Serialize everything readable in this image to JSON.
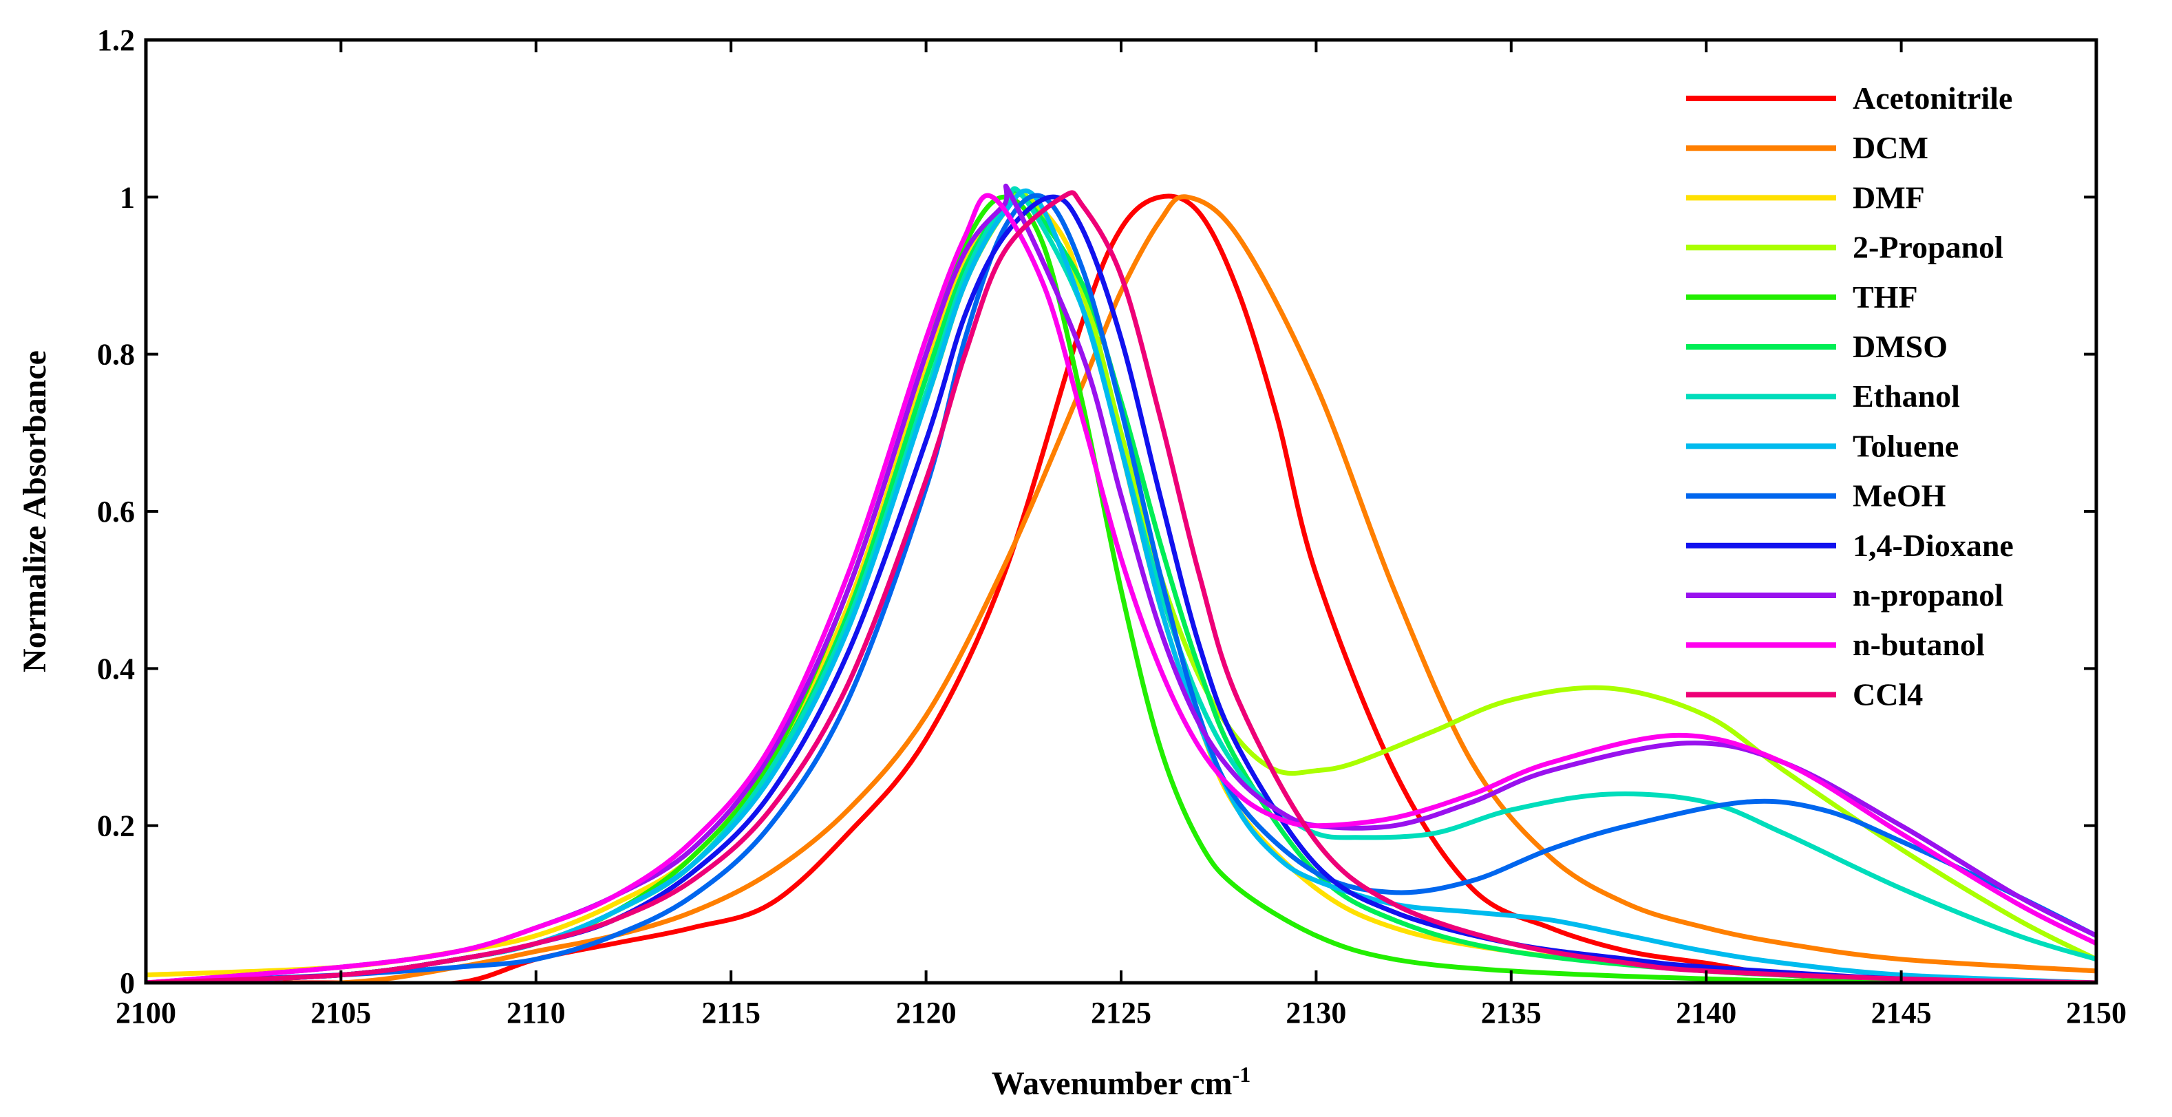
{
  "chart_data": {
    "type": "line",
    "xlabel": "Wavenumber cm",
    "xlabel_sup": "-1",
    "ylabel": "Normalize Absorbance",
    "xlim": [
      2100,
      2150
    ],
    "ylim": [
      0,
      1.2
    ],
    "xticks": [
      2100,
      2105,
      2110,
      2115,
      2120,
      2125,
      2130,
      2135,
      2140,
      2145,
      2150
    ],
    "yticks": [
      0,
      0.2,
      0.4,
      0.6,
      0.8,
      1,
      1.2
    ],
    "ytick_labels": [
      "0",
      "0.2",
      "0.4",
      "0.6",
      "0.8",
      "1",
      "1.2"
    ],
    "legend_position": "top-right",
    "series": [
      {
        "name": "Acetonitrile",
        "color": "#ff0000",
        "x": [
          2100,
          2105,
          2108,
          2110,
          2112,
          2114,
          2116,
          2118,
          2120,
          2122,
          2124,
          2125,
          2126,
          2127,
          2128,
          2129,
          2130,
          2132,
          2134,
          2136,
          2138,
          2140,
          2142,
          2145,
          2150
        ],
        "y": [
          0,
          0,
          0,
          0.03,
          0.05,
          0.07,
          0.1,
          0.19,
          0.31,
          0.52,
          0.84,
          0.96,
          1.0,
          0.98,
          0.88,
          0.72,
          0.52,
          0.27,
          0.12,
          0.07,
          0.04,
          0.025,
          0.01,
          0.005,
          0
        ]
      },
      {
        "name": "DCM",
        "color": "#ff7f00",
        "x": [
          2100,
          2105,
          2108,
          2110,
          2112,
          2114,
          2116,
          2118,
          2120,
          2122,
          2124,
          2125,
          2126,
          2126.7,
          2128,
          2130,
          2132,
          2134,
          2136,
          2138,
          2140,
          2142,
          2145,
          2150
        ],
        "y": [
          0,
          0,
          0.02,
          0.04,
          0.06,
          0.09,
          0.14,
          0.22,
          0.34,
          0.53,
          0.76,
          0.88,
          0.97,
          1.0,
          0.95,
          0.76,
          0.5,
          0.28,
          0.16,
          0.1,
          0.07,
          0.05,
          0.03,
          0.015
        ]
      },
      {
        "name": "DMF",
        "color": "#ffe000",
        "x": [
          2100,
          2105,
          2108,
          2110,
          2112,
          2114,
          2116,
          2118,
          2120,
          2121,
          2122,
          2122.6,
          2123.5,
          2124,
          2125,
          2126,
          2127,
          2128,
          2130,
          2132,
          2135,
          2140,
          2145,
          2150
        ],
        "y": [
          0.01,
          0.02,
          0.04,
          0.06,
          0.1,
          0.16,
          0.28,
          0.48,
          0.78,
          0.92,
          0.99,
          1.0,
          0.95,
          0.88,
          0.68,
          0.48,
          0.33,
          0.22,
          0.12,
          0.07,
          0.04,
          0.015,
          0.005,
          0
        ]
      },
      {
        "name": "2-Propanol",
        "color": "#aaff00",
        "x": [
          2100,
          2105,
          2108,
          2110,
          2112,
          2114,
          2116,
          2118,
          2120,
          2121,
          2122,
          2122.6,
          2124,
          2125,
          2126,
          2127,
          2128,
          2129,
          2130,
          2131,
          2133,
          2135,
          2137.5,
          2140,
          2142,
          2145,
          2148,
          2150
        ],
        "y": [
          0,
          0.01,
          0.03,
          0.05,
          0.09,
          0.15,
          0.27,
          0.46,
          0.74,
          0.89,
          0.98,
          1.0,
          0.88,
          0.7,
          0.52,
          0.39,
          0.31,
          0.27,
          0.27,
          0.28,
          0.32,
          0.36,
          0.375,
          0.34,
          0.27,
          0.17,
          0.08,
          0.03
        ]
      },
      {
        "name": "THF",
        "color": "#22ee00",
        "x": [
          2100,
          2105,
          2108,
          2110,
          2112,
          2114,
          2116,
          2118,
          2120,
          2121,
          2122,
          2123,
          2124,
          2125,
          2126,
          2127,
          2128,
          2130,
          2132,
          2135,
          2140,
          2145,
          2150
        ],
        "y": [
          0,
          0.01,
          0.03,
          0.05,
          0.09,
          0.16,
          0.28,
          0.5,
          0.8,
          0.94,
          1.0,
          0.94,
          0.74,
          0.5,
          0.3,
          0.18,
          0.12,
          0.06,
          0.03,
          0.015,
          0.005,
          0,
          0
        ]
      },
      {
        "name": "DMSO",
        "color": "#00ee55",
        "x": [
          2100,
          2105,
          2108,
          2110,
          2112,
          2114,
          2116,
          2118,
          2120,
          2121,
          2122,
          2122.5,
          2124,
          2125,
          2126,
          2127,
          2128,
          2130,
          2132,
          2135,
          2140,
          2145,
          2150
        ],
        "y": [
          0,
          0.01,
          0.03,
          0.05,
          0.09,
          0.15,
          0.27,
          0.47,
          0.77,
          0.91,
          0.99,
          1.0,
          0.89,
          0.74,
          0.56,
          0.4,
          0.28,
          0.14,
          0.08,
          0.04,
          0.015,
          0.005,
          0
        ]
      },
      {
        "name": "Ethanol",
        "color": "#00ddbb",
        "x": [
          2100,
          2105,
          2108,
          2110,
          2112,
          2114,
          2116,
          2118,
          2120,
          2121,
          2122,
          2122.5,
          2124,
          2125,
          2126,
          2127,
          2128,
          2129,
          2130,
          2131,
          2133,
          2135,
          2137.5,
          2140,
          2142,
          2145,
          2148,
          2150
        ],
        "y": [
          0,
          0.01,
          0.03,
          0.05,
          0.09,
          0.15,
          0.27,
          0.46,
          0.75,
          0.9,
          0.99,
          1.0,
          0.86,
          0.68,
          0.5,
          0.36,
          0.27,
          0.22,
          0.19,
          0.185,
          0.19,
          0.22,
          0.24,
          0.23,
          0.19,
          0.12,
          0.06,
          0.03
        ]
      },
      {
        "name": "Toluene",
        "color": "#00bbee",
        "x": [
          2100,
          2105,
          2108,
          2110,
          2112,
          2114,
          2116,
          2118,
          2120,
          2121,
          2122,
          2122.8,
          2124,
          2125,
          2126,
          2127,
          2128,
          2129,
          2130,
          2132,
          2134,
          2136,
          2138,
          2140,
          2142,
          2145,
          2150
        ],
        "y": [
          0,
          0.01,
          0.03,
          0.05,
          0.09,
          0.15,
          0.26,
          0.45,
          0.74,
          0.89,
          0.98,
          1.0,
          0.86,
          0.68,
          0.48,
          0.33,
          0.22,
          0.16,
          0.13,
          0.1,
          0.09,
          0.08,
          0.06,
          0.04,
          0.025,
          0.01,
          0
        ]
      },
      {
        "name": "MeOH",
        "color": "#0066ee",
        "x": [
          2100,
          2105,
          2108,
          2110,
          2112,
          2114,
          2116,
          2118,
          2120,
          2121,
          2122,
          2123,
          2124,
          2125,
          2126,
          2127,
          2128,
          2130,
          2132,
          2134,
          2136,
          2138,
          2141,
          2143,
          2145,
          2148,
          2150
        ],
        "y": [
          0,
          0.01,
          0.02,
          0.03,
          0.06,
          0.11,
          0.2,
          0.36,
          0.63,
          0.82,
          0.96,
          1.0,
          0.91,
          0.73,
          0.52,
          0.34,
          0.23,
          0.14,
          0.115,
          0.13,
          0.17,
          0.2,
          0.23,
          0.22,
          0.18,
          0.11,
          0.06
        ]
      },
      {
        "name": "1,4-Dioxane",
        "color": "#1111ee",
        "x": [
          2100,
          2105,
          2108,
          2110,
          2112,
          2114,
          2116,
          2118,
          2120,
          2121,
          2122,
          2123.2,
          2124,
          2125,
          2126,
          2127,
          2128,
          2130,
          2132,
          2135,
          2138,
          2140,
          2145,
          2150
        ],
        "y": [
          0,
          0.01,
          0.03,
          0.05,
          0.08,
          0.14,
          0.24,
          0.42,
          0.69,
          0.85,
          0.95,
          1.0,
          0.96,
          0.82,
          0.62,
          0.43,
          0.3,
          0.15,
          0.09,
          0.05,
          0.03,
          0.02,
          0.005,
          0
        ]
      },
      {
        "name": "n-propanol",
        "color": "#9911ee",
        "x": [
          2100,
          2105,
          2108,
          2110,
          2112,
          2114,
          2116,
          2118,
          2120,
          2121,
          2122,
          2122.2,
          2124,
          2125,
          2126,
          2127,
          2128,
          2129,
          2130,
          2132,
          2134,
          2136,
          2139.5,
          2142,
          2145,
          2148,
          2150
        ],
        "y": [
          0,
          0.02,
          0.04,
          0.07,
          0.11,
          0.17,
          0.29,
          0.5,
          0.8,
          0.93,
          0.99,
          1.0,
          0.8,
          0.62,
          0.45,
          0.33,
          0.26,
          0.22,
          0.2,
          0.2,
          0.23,
          0.27,
          0.305,
          0.28,
          0.2,
          0.11,
          0.06
        ]
      },
      {
        "name": "n-butanol",
        "color": "#ff00ee",
        "x": [
          2100,
          2105,
          2108,
          2110,
          2112,
          2114,
          2116,
          2118,
          2120,
          2121,
          2121.7,
          2123,
          2124,
          2125,
          2126,
          2127,
          2128,
          2129,
          2130,
          2132,
          2134,
          2136,
          2139.3,
          2142,
          2145,
          2148,
          2150
        ],
        "y": [
          0,
          0.02,
          0.04,
          0.07,
          0.11,
          0.18,
          0.3,
          0.52,
          0.82,
          0.95,
          1.0,
          0.89,
          0.72,
          0.54,
          0.4,
          0.3,
          0.24,
          0.21,
          0.2,
          0.21,
          0.24,
          0.28,
          0.315,
          0.28,
          0.19,
          0.1,
          0.05
        ]
      },
      {
        "name": "CCl4",
        "color": "#ee0077",
        "x": [
          2100,
          2105,
          2108,
          2110,
          2112,
          2114,
          2116,
          2118,
          2120,
          2121,
          2122,
          2123.5,
          2124,
          2125,
          2126,
          2127,
          2128,
          2130,
          2132,
          2135,
          2138,
          2140,
          2145,
          2150
        ],
        "y": [
          0,
          0.01,
          0.03,
          0.05,
          0.08,
          0.13,
          0.22,
          0.38,
          0.64,
          0.8,
          0.93,
          1.0,
          0.99,
          0.9,
          0.72,
          0.52,
          0.36,
          0.18,
          0.1,
          0.05,
          0.025,
          0.015,
          0.005,
          0
        ]
      }
    ]
  }
}
